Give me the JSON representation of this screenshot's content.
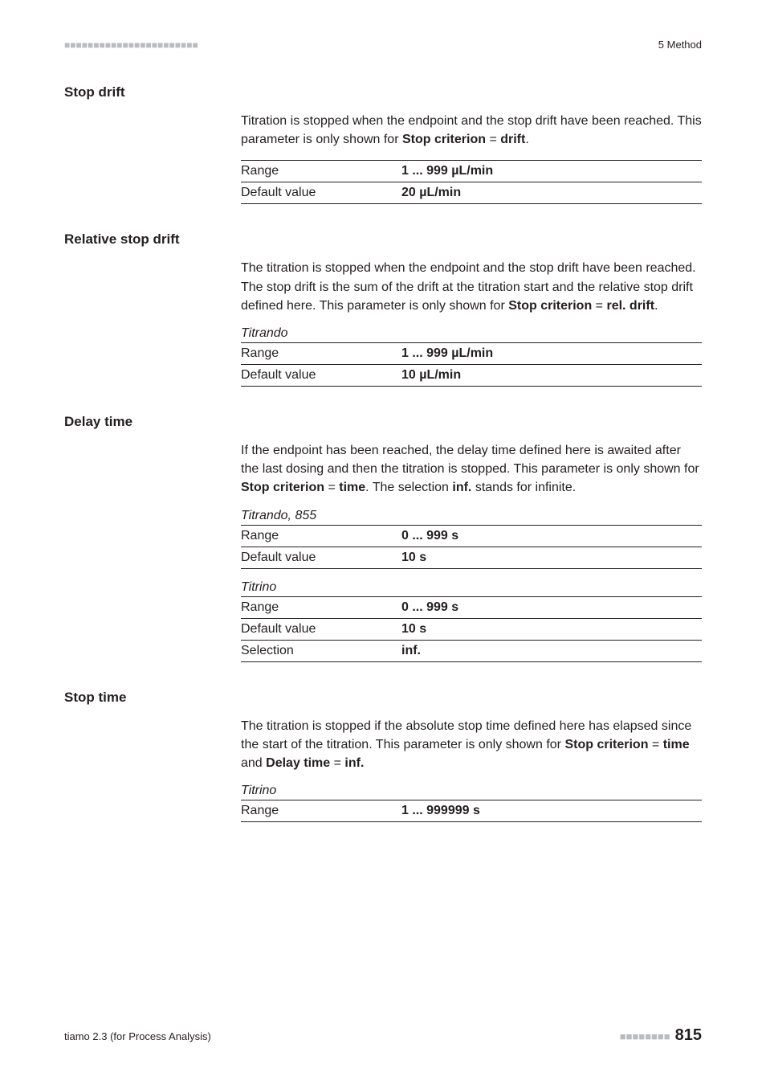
{
  "header": {
    "dashes": "■■■■■■■■■■■■■■■■■■■■■■■",
    "right": "5 Method"
  },
  "sections": {
    "stop_drift": {
      "heading": "Stop drift",
      "para_parts": {
        "p1": "Titration is stopped when the endpoint and the stop drift have been reached. This parameter is only shown for ",
        "b1": "Stop criterion",
        "eq": " = ",
        "b2": "drift",
        "end": "."
      },
      "rows": {
        "range_label": "Range",
        "range_value": "1 ... 999 µL/min",
        "default_label": "Default value",
        "default_value": "20 µL/min"
      }
    },
    "rel_stop_drift": {
      "heading": "Relative stop drift",
      "para_parts": {
        "p1": "The titration is stopped when the endpoint and the stop drift have been reached. The stop drift is the sum of the drift at the titration start and the relative stop drift defined here. This parameter is only shown for ",
        "b1": "Stop criterion",
        "eq": " = ",
        "b2": "rel. drift",
        "end": "."
      },
      "device": "Titrando",
      "rows": {
        "range_label": "Range",
        "range_value": "1 ... 999 µL/min",
        "default_label": "Default value",
        "default_value": "10 µL/min"
      }
    },
    "delay_time": {
      "heading": "Delay time",
      "para_parts": {
        "p1": "If the endpoint has been reached, the delay time defined here is awaited after the last dosing and then the titration is stopped. This parameter is only shown for ",
        "b1": "Stop criterion",
        "eq": " = ",
        "b2": "time",
        "mid": ". The selection ",
        "b3": "inf.",
        "end": " stands for infinite."
      },
      "device1": "Titrando, 855",
      "rows1": {
        "range_label": "Range",
        "range_value": "0 ... 999 s",
        "default_label": "Default value",
        "default_value": "10 s"
      },
      "device2": "Titrino",
      "rows2": {
        "range_label": "Range",
        "range_value": "0 ... 999 s",
        "default_label": "Default value",
        "default_value": "10 s",
        "selection_label": "Selection",
        "selection_value": "inf."
      }
    },
    "stop_time": {
      "heading": "Stop time",
      "para_parts": {
        "p1": "The titration is stopped if the absolute stop time defined here has elapsed since the start of the titration. This parameter is only shown for ",
        "b1": "Stop criterion",
        "eq": " = ",
        "b2": "time",
        "mid": " and ",
        "b3": "Delay time",
        "eq2": " = ",
        "b4": "inf."
      },
      "device": "Titrino",
      "rows": {
        "range_label": "Range",
        "range_value": "1 ... 999999 s"
      }
    }
  },
  "footer": {
    "left": "tiamo 2.3 (for Process Analysis)",
    "dashes": "■■■■■■■■",
    "page": "815"
  }
}
